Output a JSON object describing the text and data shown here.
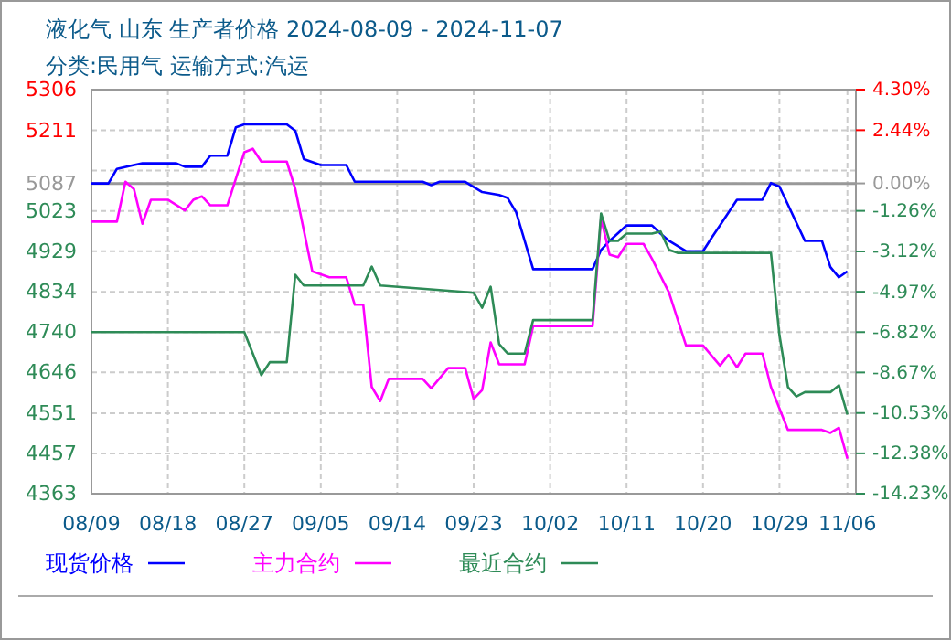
{
  "chart_data": {
    "type": "line",
    "title": "液化气 山东 生产者价格 2024-08-09 - 2024-11-07",
    "subtitle": "分类:民用气 运输方式:汽运",
    "xlim": [
      "2024-08-09",
      "2024-11-07"
    ],
    "xticks": [
      {
        "value": "2024-08-09",
        "label": "08/09"
      },
      {
        "value": "2024-08-18",
        "label": "08/18"
      },
      {
        "value": "2024-08-27",
        "label": "08/27"
      },
      {
        "value": "2024-09-05",
        "label": "09/05"
      },
      {
        "value": "2024-09-14",
        "label": "09/14"
      },
      {
        "value": "2024-09-23",
        "label": "09/23"
      },
      {
        "value": "2024-10-02",
        "label": "10/02"
      },
      {
        "value": "2024-10-11",
        "label": "10/11"
      },
      {
        "value": "2024-10-20",
        "label": "10/20"
      },
      {
        "value": "2024-10-29",
        "label": "10/29"
      },
      {
        "value": "2024-11-06",
        "label": "11/06"
      }
    ],
    "ylim": [
      4363,
      5306
    ],
    "yticks": [
      5306,
      5211,
      {
        "value": 5117,
        "label": null
      },
      5087,
      5023,
      4929,
      4834,
      4740,
      4646,
      4551,
      4457,
      4363
    ],
    "y2lim": [
      -14.23,
      4.3
    ],
    "y2ticks": [
      {
        "value": 4.3,
        "label": "4.30%"
      },
      {
        "value": 2.44,
        "label": "2.44%"
      },
      {
        "value": 0,
        "label": "0.00%"
      },
      {
        "value": -1.26,
        "label": "-1.26%"
      },
      {
        "value": -3.12,
        "label": "-3.12%"
      },
      {
        "value": -4.97,
        "label": "-4.97%"
      },
      {
        "value": -6.82,
        "label": "-6.82%"
      },
      {
        "value": -8.67,
        "label": "-8.67%"
      },
      {
        "value": -10.53,
        "label": "-10.53%"
      },
      {
        "value": -12.38,
        "label": "-12.38%"
      },
      {
        "value": -14.23,
        "label": "-14.23%"
      }
    ],
    "ref_lines": [
      {
        "axis": "y",
        "value": 5087,
        "color": "#999999"
      }
    ],
    "grid": true,
    "legend": "bottom",
    "marker": "none",
    "line_style": "solid",
    "series": [
      {
        "name": "现货价格",
        "color": "#0000ff",
        "x": [
          "2024-08-09",
          "2024-08-11",
          "2024-08-12",
          "2024-08-14",
          "2024-08-15",
          "2024-08-19",
          "2024-08-20",
          "2024-08-22",
          "2024-08-23",
          "2024-08-25",
          "2024-08-26",
          "2024-08-27",
          "2024-09-01",
          "2024-09-02",
          "2024-09-03",
          "2024-09-05",
          "2024-09-08",
          "2024-09-09",
          "2024-09-17",
          "2024-09-18",
          "2024-09-19",
          "2024-09-22",
          "2024-09-24",
          "2024-09-26",
          "2024-09-27",
          "2024-09-28",
          "2024-09-30",
          "2024-10-07",
          "2024-10-08",
          "2024-10-09",
          "2024-10-11",
          "2024-10-14",
          "2024-10-15",
          "2024-10-16",
          "2024-10-18",
          "2024-10-20",
          "2024-10-21",
          "2024-10-22",
          "2024-10-24",
          "2024-10-27",
          "2024-10-28",
          "2024-10-29",
          "2024-11-01",
          "2024-11-03",
          "2024-11-04",
          "2024-11-05",
          "2024-11-06"
        ],
        "values": [
          5087,
          5087,
          5121,
          5130,
          5134,
          5134,
          5126,
          5126,
          5152,
          5152,
          5218,
          5225,
          5225,
          5210,
          5144,
          5130,
          5130,
          5091,
          5091,
          5083,
          5091,
          5091,
          5067,
          5060,
          5053,
          5020,
          4887,
          4887,
          4932,
          4953,
          4989,
          4989,
          4970,
          4953,
          4929,
          4929,
          4960,
          4989,
          5049,
          5049,
          5088,
          5080,
          4953,
          4953,
          4892,
          4868,
          4882
        ]
      },
      {
        "name": "主力合约",
        "color": "#ff00ff",
        "x": [
          "2024-08-09",
          "2024-08-12",
          "2024-08-13",
          "2024-08-14",
          "2024-08-15",
          "2024-08-16",
          "2024-08-18",
          "2024-08-20",
          "2024-08-21",
          "2024-08-22",
          "2024-08-23",
          "2024-08-25",
          "2024-08-27",
          "2024-08-28",
          "2024-08-29",
          "2024-09-01",
          "2024-09-02",
          "2024-09-04",
          "2024-09-06",
          "2024-09-08",
          "2024-09-09",
          "2024-09-10",
          "2024-09-11",
          "2024-09-12",
          "2024-09-13",
          "2024-09-17",
          "2024-09-18",
          "2024-09-20",
          "2024-09-22",
          "2024-09-23",
          "2024-09-24",
          "2024-09-25",
          "2024-09-26",
          "2024-09-29",
          "2024-09-30",
          "2024-10-07",
          "2024-10-08",
          "2024-10-09",
          "2024-10-10",
          "2024-10-11",
          "2024-10-13",
          "2024-10-14",
          "2024-10-16",
          "2024-10-18",
          "2024-10-20",
          "2024-10-22",
          "2024-10-23",
          "2024-10-24",
          "2024-10-25",
          "2024-10-27",
          "2024-10-28",
          "2024-10-30",
          "2024-11-03",
          "2024-11-04",
          "2024-11-05",
          "2024-11-06"
        ],
        "values": [
          4998,
          4998,
          5091,
          5074,
          4993,
          5049,
          5049,
          5024,
          5049,
          5057,
          5036,
          5036,
          5160,
          5168,
          5138,
          5138,
          5074,
          4882,
          4868,
          4868,
          4804,
          4804,
          4612,
          4579,
          4631,
          4631,
          4609,
          4656,
          4656,
          4584,
          4605,
          4716,
          4665,
          4665,
          4754,
          4754,
          5005,
          4921,
          4915,
          4946,
          4946,
          4911,
          4832,
          4709,
          4709,
          4662,
          4687,
          4658,
          4690,
          4690,
          4612,
          4512,
          4512,
          4505,
          4517,
          4445
        ]
      },
      {
        "name": "最近合约",
        "color": "#2e8b57",
        "x": [
          "2024-08-09",
          "2024-08-27",
          "2024-08-29",
          "2024-08-30",
          "2024-09-01",
          "2024-09-02",
          "2024-09-03",
          "2024-09-10",
          "2024-09-11",
          "2024-09-12",
          "2024-09-23",
          "2024-09-24",
          "2024-09-25",
          "2024-09-26",
          "2024-09-27",
          "2024-09-29",
          "2024-09-30",
          "2024-10-07",
          "2024-10-08",
          "2024-10-09",
          "2024-10-10",
          "2024-10-11",
          "2024-10-14",
          "2024-10-15",
          "2024-10-16",
          "2024-10-17",
          "2024-10-28",
          "2024-10-29",
          "2024-10-30",
          "2024-10-31",
          "2024-11-01",
          "2024-11-04",
          "2024-11-05",
          "2024-11-06"
        ],
        "values": [
          4740,
          4740,
          4640,
          4670,
          4670,
          4874,
          4849,
          4849,
          4893,
          4849,
          4832,
          4797,
          4846,
          4712,
          4690,
          4690,
          4768,
          4768,
          5017,
          4953,
          4953,
          4970,
          4970,
          4975,
          4932,
          4925,
          4925,
          4733,
          4612,
          4590,
          4600,
          4600,
          4616,
          4548
        ]
      }
    ]
  }
}
